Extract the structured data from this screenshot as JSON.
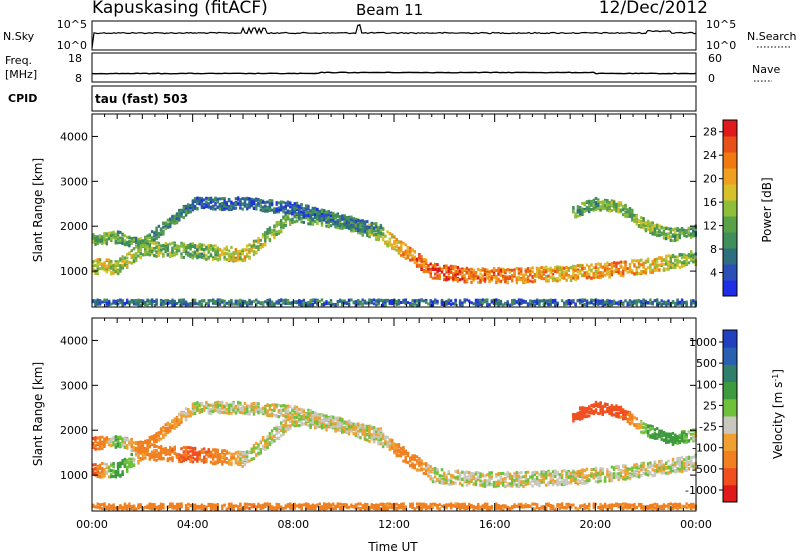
{
  "header": {
    "station": "Kapuskasing (fitACF)",
    "beam": "Beam 11",
    "date": "12/Dec/2012"
  },
  "meta_rows": {
    "nsky": {
      "label": "N.Sky",
      "ticks": [
        "10^5",
        "10^0"
      ],
      "right_label": "N.Search",
      "right_ticks": [
        "10^5",
        "10^0"
      ]
    },
    "freq": {
      "label_1": "Freq.",
      "label_2": "[MHz]",
      "ticks": [
        "18",
        "8"
      ],
      "right_label": "Nave",
      "right_ticks": [
        "60",
        "0"
      ]
    },
    "cpid": {
      "label": "CPID",
      "value": "tau (fast) 503"
    }
  },
  "chart_data": [
    {
      "type": "heatmap",
      "panel": "power",
      "ylabel": "Slant Range [km]",
      "yticks": [
        "1000",
        "2000",
        "3000",
        "4000"
      ],
      "ylim": [
        200,
        4500
      ],
      "xticks": [
        "00:00",
        "04:00",
        "08:00",
        "12:00",
        "16:00",
        "20:00",
        "00:00"
      ],
      "xlim_hours": [
        0,
        24
      ],
      "colorbar": {
        "label": "Power [dB]",
        "ticks": [
          "4",
          "8",
          "12",
          "16",
          "20",
          "24",
          "28"
        ],
        "range": [
          0,
          30
        ],
        "colors": [
          "#1e2ee6",
          "#2a4fb8",
          "#2f6e7e",
          "#3f8f5a",
          "#5aa046",
          "#8fbf3a",
          "#d8c02a",
          "#f0a020",
          "#f07a10",
          "#e8501a",
          "#e01a1a"
        ]
      },
      "bands": [
        {
          "name": "main echo band",
          "t": [
            0,
            1,
            2,
            4,
            6,
            8,
            10,
            11.5,
            12.5,
            13.5,
            15,
            17,
            19,
            21,
            22.5,
            24
          ],
          "r": [
            1100,
            1100,
            1500,
            1450,
            1350,
            2250,
            2100,
            1800,
            1400,
            1000,
            900,
            900,
            950,
            1050,
            1150,
            1300
          ],
          "power": [
            16,
            16,
            14,
            12,
            18,
            10,
            12,
            16,
            22,
            26,
            24,
            22,
            20,
            22,
            18,
            12
          ]
        },
        {
          "name": "upper echo band",
          "t": [
            0,
            1,
            2,
            4,
            6,
            8,
            10,
            11.5
          ],
          "r": [
            1700,
            1750,
            1600,
            2500,
            2500,
            2400,
            2100,
            1900
          ],
          "power": [
            14,
            12,
            12,
            6,
            6,
            6,
            8,
            10
          ]
        },
        {
          "name": "late high-range patches",
          "t": [
            19,
            20,
            21,
            22,
            23,
            24
          ],
          "r": [
            2300,
            2500,
            2400,
            2000,
            1800,
            1900
          ],
          "power": [
            10,
            12,
            14,
            14,
            12,
            10
          ]
        },
        {
          "name": "ground-range noise",
          "t": [
            0,
            6,
            12,
            18,
            24
          ],
          "r": [
            300,
            300,
            300,
            300,
            300
          ],
          "power": [
            6,
            8,
            6,
            6,
            6
          ]
        }
      ]
    },
    {
      "type": "heatmap",
      "panel": "velocity",
      "ylabel": "Slant Range [km]",
      "yticks": [
        "1000",
        "2000",
        "3000",
        "4000"
      ],
      "ylim": [
        200,
        4500
      ],
      "xticks": [
        "00:00",
        "04:00",
        "08:00",
        "12:00",
        "16:00",
        "20:00",
        "00:00"
      ],
      "xlim_hours": [
        0,
        24
      ],
      "xlabel": "Time UT",
      "colorbar": {
        "label": "Velocity [m s^-1]",
        "ticks": [
          "1000",
          "500",
          "100",
          "25",
          "-25",
          "-100",
          "-500",
          "-1000"
        ],
        "colors": [
          "#2040c0",
          "#2a60b0",
          "#2f7f6a",
          "#3d9a3d",
          "#6ec23a",
          "#c8c8c0",
          "#f0a030",
          "#f08020",
          "#f05020",
          "#e01a1a"
        ]
      },
      "bands": [
        {
          "name": "main echo band",
          "t": [
            0,
            1,
            2,
            4,
            6,
            8,
            10,
            11.5,
            12.5,
            13.5,
            15,
            17,
            19,
            21,
            22.5,
            24
          ],
          "r": [
            1100,
            1100,
            1500,
            1450,
            1350,
            2250,
            2100,
            1800,
            1400,
            1000,
            900,
            900,
            950,
            1050,
            1150,
            1300
          ],
          "vel": [
            -300,
            200,
            -100,
            -300,
            0,
            0,
            0,
            0,
            -200,
            0,
            0,
            0,
            0,
            0,
            0,
            0
          ]
        },
        {
          "name": "upper echo band",
          "t": [
            0,
            1,
            2,
            4,
            6,
            8,
            10,
            11.5
          ],
          "r": [
            1700,
            1750,
            1600,
            2500,
            2500,
            2400,
            2100,
            1900
          ],
          "vel": [
            -300,
            100,
            -200,
            0,
            0,
            0,
            0,
            0
          ]
        },
        {
          "name": "late high-range patches",
          "t": [
            19,
            20,
            21,
            22,
            23,
            24
          ],
          "r": [
            2300,
            2500,
            2400,
            2000,
            1800,
            1900
          ],
          "vel": [
            -300,
            -400,
            -300,
            100,
            200,
            0
          ]
        },
        {
          "name": "ground-range noise",
          "t": [
            0,
            6,
            12,
            18,
            24
          ],
          "r": [
            300,
            300,
            300,
            300,
            300
          ],
          "vel": [
            -150,
            -200,
            -150,
            -150,
            -150
          ]
        }
      ]
    }
  ]
}
